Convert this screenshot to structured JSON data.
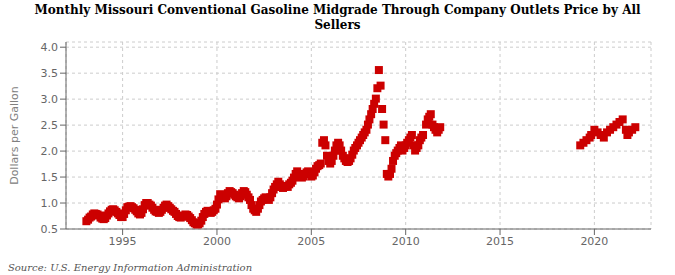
{
  "chart_data": {
    "type": "scatter",
    "title": "Monthly Missouri Conventional Gasoline Midgrade Through Company Outlets Price by All\nSellers",
    "ylabel": "Dollars per Gallon",
    "annotations": [
      "Source: U.S. Energy Information Administration"
    ],
    "color": "#cc0000",
    "marker": "square",
    "grid": true,
    "xlim": [
      1992.0,
      2023.0
    ],
    "ylim": [
      0.5,
      4.1
    ],
    "xticks": [
      1995,
      2000,
      2005,
      2010,
      2015,
      2020
    ],
    "yticks": [
      0.5,
      {
        "value": 1.0,
        "label": "1.0"
      },
      1.5,
      {
        "value": 2.0,
        "label": "2.0"
      },
      2.5,
      {
        "value": 3.0,
        "label": "3.0"
      },
      3.5,
      {
        "value": 4.0,
        "label": "4.0"
      }
    ],
    "x": [
      1993.08,
      1993.17,
      1993.25,
      1993.33,
      1993.42,
      1993.5,
      1993.58,
      1993.67,
      1993.75,
      1993.83,
      1993.92,
      1994.0,
      1994.08,
      1994.17,
      1994.25,
      1994.33,
      1994.42,
      1994.5,
      1994.58,
      1994.67,
      1994.75,
      1994.83,
      1994.92,
      1995.0,
      1995.08,
      1995.17,
      1995.25,
      1995.33,
      1995.42,
      1995.5,
      1995.58,
      1995.67,
      1995.75,
      1995.83,
      1995.92,
      1996.0,
      1996.08,
      1996.17,
      1996.25,
      1996.33,
      1996.42,
      1996.5,
      1996.58,
      1996.67,
      1996.75,
      1996.83,
      1996.92,
      1997.0,
      1997.08,
      1997.17,
      1997.25,
      1997.33,
      1997.42,
      1997.5,
      1997.58,
      1997.67,
      1997.75,
      1997.83,
      1997.92,
      1998.0,
      1998.08,
      1998.17,
      1998.25,
      1998.33,
      1998.42,
      1998.5,
      1998.58,
      1998.67,
      1998.75,
      1998.83,
      1998.92,
      1999.0,
      1999.08,
      1999.17,
      1999.25,
      1999.33,
      1999.42,
      1999.5,
      1999.58,
      1999.67,
      1999.75,
      1999.83,
      1999.92,
      2000.0,
      2000.08,
      2000.17,
      2000.25,
      2000.33,
      2000.42,
      2000.5,
      2000.58,
      2000.67,
      2000.75,
      2000.83,
      2000.92,
      2001.0,
      2001.08,
      2001.17,
      2001.25,
      2001.33,
      2001.42,
      2001.5,
      2001.58,
      2001.67,
      2001.75,
      2001.83,
      2001.92,
      2002.0,
      2002.08,
      2002.17,
      2002.25,
      2002.33,
      2002.42,
      2002.5,
      2002.58,
      2002.67,
      2002.75,
      2002.83,
      2002.92,
      2003.0,
      2003.08,
      2003.17,
      2003.25,
      2003.33,
      2003.42,
      2003.5,
      2003.58,
      2003.67,
      2003.75,
      2003.83,
      2003.92,
      2004.0,
      2004.08,
      2004.17,
      2004.25,
      2004.33,
      2004.42,
      2004.5,
      2004.58,
      2004.67,
      2004.75,
      2004.83,
      2004.92,
      2005.0,
      2005.08,
      2005.17,
      2005.25,
      2005.33,
      2005.42,
      2005.5,
      2005.58,
      2005.67,
      2005.75,
      2005.83,
      2005.92,
      2006.0,
      2006.08,
      2006.17,
      2006.25,
      2006.33,
      2006.42,
      2006.5,
      2006.58,
      2006.67,
      2006.75,
      2006.83,
      2006.92,
      2007.0,
      2007.08,
      2007.17,
      2007.25,
      2007.33,
      2007.42,
      2007.5,
      2007.58,
      2007.67,
      2007.75,
      2007.83,
      2007.92,
      2008.0,
      2008.08,
      2008.17,
      2008.25,
      2008.33,
      2008.42,
      2008.5,
      2008.58,
      2008.67,
      2008.75,
      2008.83,
      2008.92,
      2009.0,
      2009.08,
      2009.17,
      2009.25,
      2009.33,
      2009.42,
      2009.5,
      2009.58,
      2009.67,
      2009.75,
      2009.83,
      2009.92,
      2010.0,
      2010.08,
      2010.17,
      2010.25,
      2010.33,
      2010.42,
      2010.5,
      2010.58,
      2010.67,
      2010.75,
      2010.83,
      2010.92,
      2011.08,
      2011.17,
      2011.25,
      2011.33,
      2011.42,
      2011.5,
      2011.58,
      2011.67,
      2011.75,
      2011.83,
      2019.25,
      2019.42,
      2019.58,
      2019.75,
      2019.83,
      2020.0,
      2020.17,
      2020.33,
      2020.5,
      2020.67,
      2020.83,
      2021.0,
      2021.17,
      2021.33,
      2021.5,
      2021.67,
      2021.75,
      2021.83,
      2022.0,
      2022.17
    ],
    "values": [
      0.65,
      0.68,
      0.72,
      0.74,
      0.78,
      0.8,
      0.79,
      0.78,
      0.76,
      0.72,
      0.7,
      0.69,
      0.71,
      0.76,
      0.8,
      0.84,
      0.87,
      0.88,
      0.86,
      0.83,
      0.8,
      0.77,
      0.73,
      0.73,
      0.79,
      0.86,
      0.92,
      0.93,
      0.94,
      0.92,
      0.9,
      0.87,
      0.84,
      0.8,
      0.78,
      0.81,
      0.88,
      0.96,
      1.0,
      1.0,
      0.97,
      0.95,
      0.91,
      0.87,
      0.84,
      0.83,
      0.81,
      0.83,
      0.87,
      0.91,
      0.95,
      0.97,
      0.94,
      0.91,
      0.88,
      0.85,
      0.83,
      0.79,
      0.75,
      0.73,
      0.72,
      0.74,
      0.76,
      0.78,
      0.77,
      0.74,
      0.71,
      0.67,
      0.63,
      0.61,
      0.59,
      0.59,
      0.61,
      0.66,
      0.73,
      0.79,
      0.83,
      0.85,
      0.83,
      0.81,
      0.83,
      0.86,
      0.89,
      0.97,
      1.07,
      1.17,
      1.13,
      1.11,
      1.09,
      1.13,
      1.19,
      1.23,
      1.21,
      1.19,
      1.16,
      1.13,
      1.11,
      1.09,
      1.13,
      1.19,
      1.23,
      1.21,
      1.16,
      1.11,
      1.06,
      0.96,
      0.89,
      0.86,
      0.83,
      0.89,
      0.96,
      1.03,
      1.06,
      1.09,
      1.11,
      1.09,
      1.06,
      1.11,
      1.19,
      1.26,
      1.31,
      1.36,
      1.41,
      1.36,
      1.31,
      1.29,
      1.31,
      1.33,
      1.31,
      1.36,
      1.39,
      1.43,
      1.49,
      1.56,
      1.61,
      1.56,
      1.51,
      1.49,
      1.51,
      1.56,
      1.59,
      1.61,
      1.56,
      1.51,
      1.53,
      1.59,
      1.66,
      1.71,
      1.73,
      1.76,
      2.16,
      2.21,
      2.11,
      1.91,
      1.81,
      1.76,
      1.81,
      1.91,
      2.01,
      2.11,
      2.16,
      2.11,
      2.01,
      1.91,
      1.86,
      1.81,
      1.79,
      1.81,
      1.86,
      1.93,
      2.01,
      2.06,
      2.11,
      2.16,
      2.21,
      2.26,
      2.31,
      2.36,
      2.41,
      2.51,
      2.61,
      2.71,
      2.81,
      2.91,
      3.01,
      3.21,
      3.56,
      3.26,
      2.81,
      2.51,
      2.21,
      1.56,
      1.51,
      1.56,
      1.66,
      1.81,
      1.91,
      1.96,
      2.01,
      2.06,
      2.11,
      2.01,
      2.06,
      2.11,
      2.16,
      2.21,
      2.26,
      2.31,
      2.11,
      2.01,
      2.06,
      2.11,
      2.21,
      2.26,
      2.31,
      2.51,
      2.61,
      2.66,
      2.71,
      2.51,
      2.46,
      2.41,
      2.36,
      2.41,
      2.46,
      2.11,
      2.16,
      2.21,
      2.26,
      2.31,
      2.41,
      2.36,
      2.31,
      2.26,
      2.36,
      2.41,
      2.46,
      2.51,
      2.56,
      2.61,
      2.41,
      2.31,
      2.36,
      2.41,
      2.46
    ]
  }
}
